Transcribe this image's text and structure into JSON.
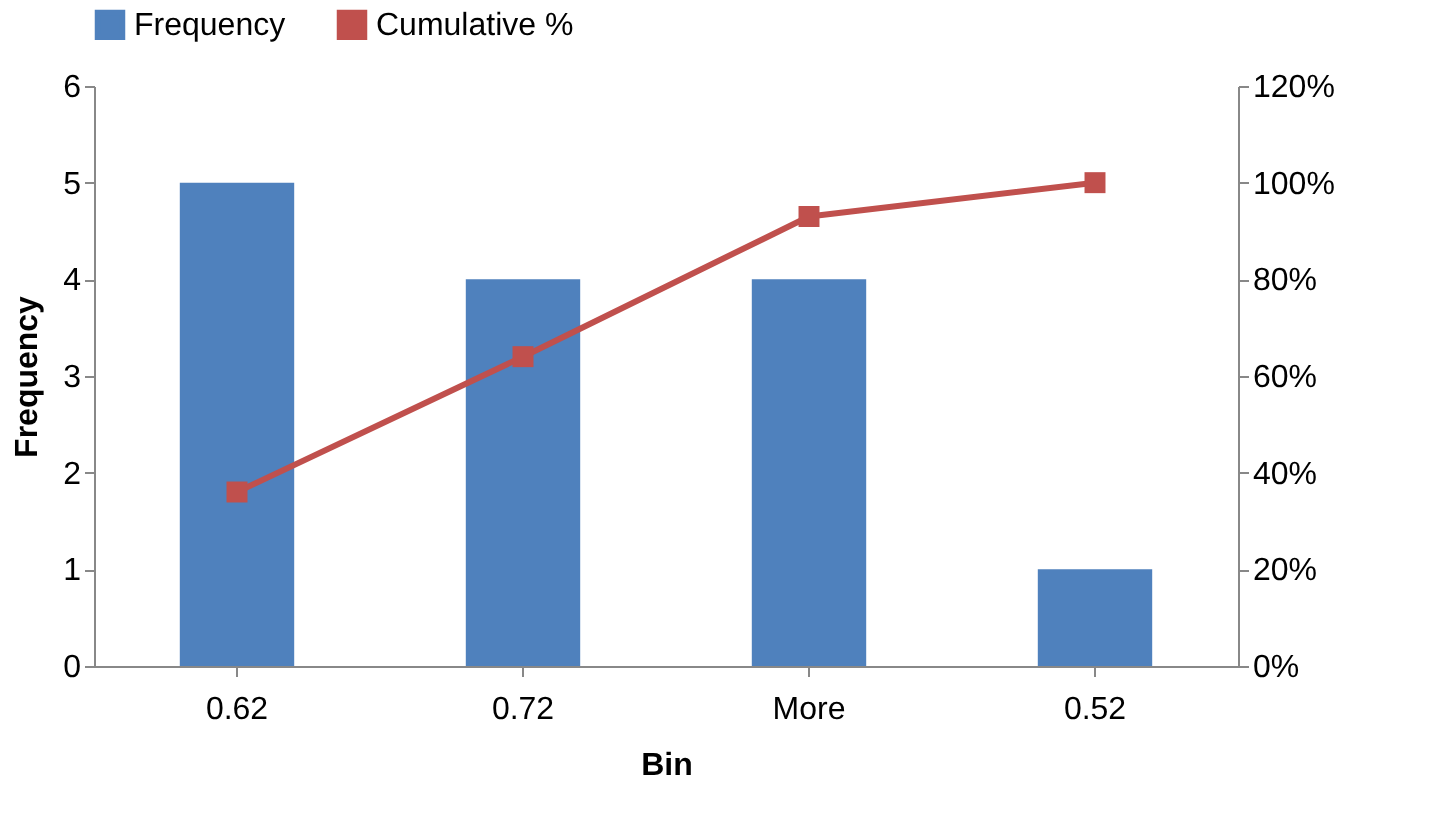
{
  "chart_data": {
    "type": "bar",
    "xlabel": "Bin",
    "ylabel": "Frequency",
    "categories": [
      "0.62",
      "0.72",
      "More",
      "0.52"
    ],
    "series": [
      {
        "name": "Frequency",
        "color": "#4f81bd",
        "values": [
          5,
          4,
          4,
          1
        ]
      },
      {
        "name": "Cumulative %",
        "type": "line",
        "axis": "y2",
        "color": "#c0504d",
        "values": [
          36,
          64,
          93,
          100
        ]
      }
    ],
    "ylim": [
      0,
      6
    ],
    "yticks": [
      0,
      1,
      2,
      3,
      4,
      5,
      6
    ],
    "y2lim": [
      0,
      120
    ],
    "y2ticks": [
      {
        "value": 0,
        "label": "0%"
      },
      {
        "value": 20,
        "label": "20%"
      },
      {
        "value": 40,
        "label": "40%"
      },
      {
        "value": 60,
        "label": "60%"
      },
      {
        "value": 80,
        "label": "80%"
      },
      {
        "value": 100,
        "label": "100%"
      },
      {
        "value": 120,
        "label": "120%"
      }
    ],
    "legend": "top",
    "marker": "square",
    "line_style": "solid",
    "grid": false
  }
}
